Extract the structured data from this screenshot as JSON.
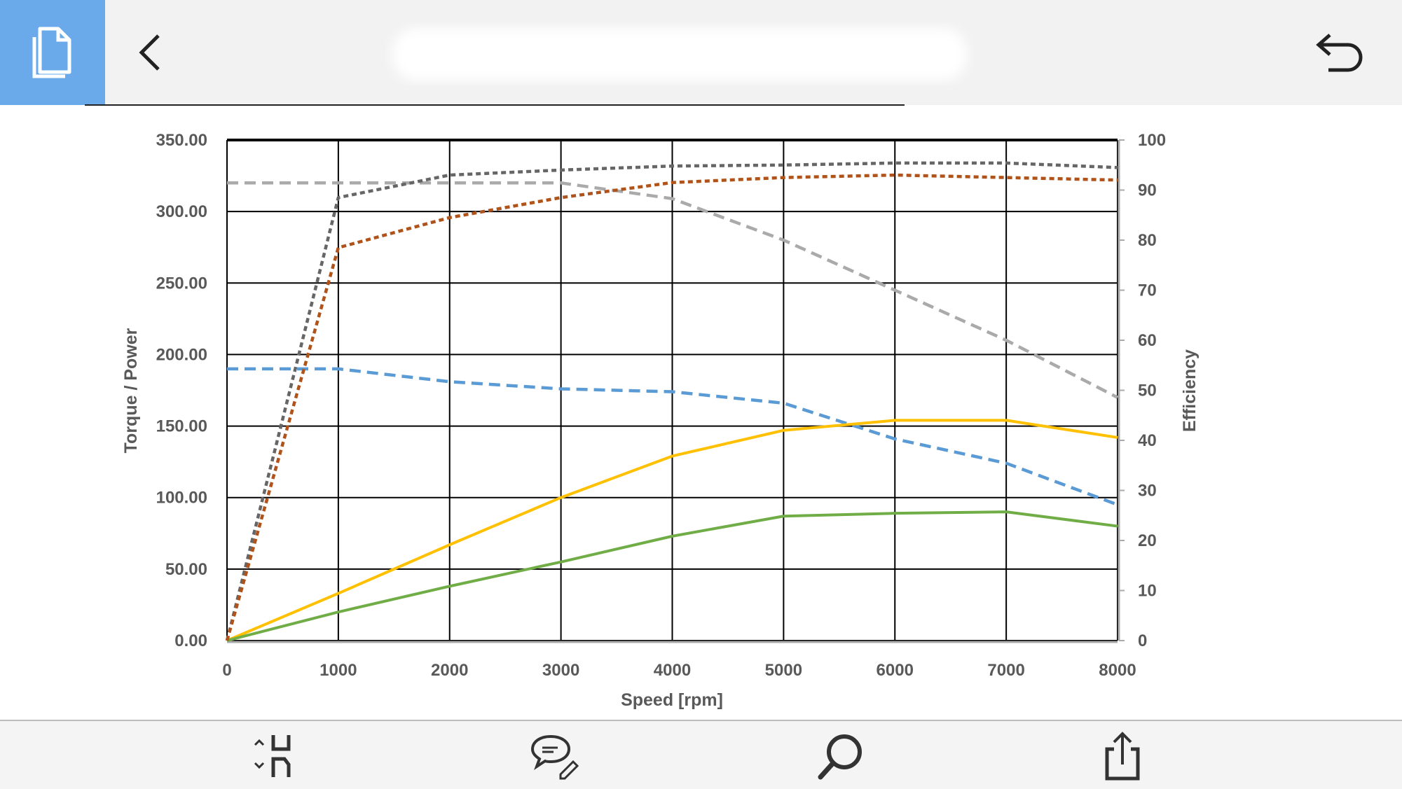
{
  "toolbar": {
    "left_icon": "document-icon",
    "back_icon": "chevron-left-icon",
    "undo_icon": "undo-icon",
    "title_redacted": true
  },
  "bottom_toolbar": {
    "icons": [
      "reading-mode-icon",
      "comment-edit-icon",
      "search-icon",
      "share-icon"
    ]
  },
  "colors": {
    "accent": "#6aa9ea",
    "dark_grey_dotted": "#666666",
    "brown_dotted": "#b0531a",
    "light_grey_dashed": "#aaaaaa",
    "blue_dashed": "#5b9bd5",
    "yellow": "#ffc000",
    "green": "#70ad47"
  },
  "chart_data": {
    "type": "line",
    "xlabel": "Speed [rpm]",
    "ylabel": "Torque / Power",
    "y2label": "Efficiency",
    "xlim": [
      0,
      8000
    ],
    "ylim": [
      0,
      350
    ],
    "y2lim": [
      0,
      100
    ],
    "grid": true,
    "x_ticks": [
      "0",
      "1000",
      "2000",
      "3000",
      "4000",
      "5000",
      "6000",
      "7000",
      "8000"
    ],
    "y_ticks": [
      "0.00",
      "50.00",
      "100.00",
      "150.00",
      "200.00",
      "250.00",
      "300.00",
      "350.00"
    ],
    "y2_ticks": [
      "0",
      "10",
      "20",
      "30",
      "40",
      "50",
      "60",
      "70",
      "80",
      "90",
      "100"
    ],
    "x": [
      0,
      1000,
      2000,
      3000,
      4000,
      5000,
      6000,
      7000,
      8000
    ],
    "series": [
      {
        "axis": "left",
        "style": "dashed",
        "color": "#aaaaaa",
        "values": [
          320,
          320,
          320,
          320,
          309,
          280,
          245,
          210,
          170
        ]
      },
      {
        "axis": "left",
        "style": "dashed",
        "color": "#5b9bd5",
        "values": [
          190,
          190,
          181,
          176,
          174,
          166,
          141,
          124,
          95
        ]
      },
      {
        "axis": "left",
        "style": "solid",
        "color": "#ffc000",
        "values": [
          0,
          33,
          67,
          100,
          129,
          147,
          154,
          154,
          142
        ]
      },
      {
        "axis": "left",
        "style": "solid",
        "color": "#70ad47",
        "values": [
          0,
          20,
          38,
          55,
          73,
          87,
          89,
          90,
          80
        ]
      },
      {
        "axis": "right",
        "style": "dotted",
        "color": "#666666",
        "values": [
          0,
          88.5,
          93,
          94,
          94.8,
          95,
          95.4,
          95.4,
          94.5
        ]
      },
      {
        "axis": "right",
        "style": "dotted",
        "color": "#b0531a",
        "values": [
          0,
          78.5,
          84.5,
          88.5,
          91.5,
          92.5,
          93,
          92.5,
          92
        ]
      }
    ]
  }
}
